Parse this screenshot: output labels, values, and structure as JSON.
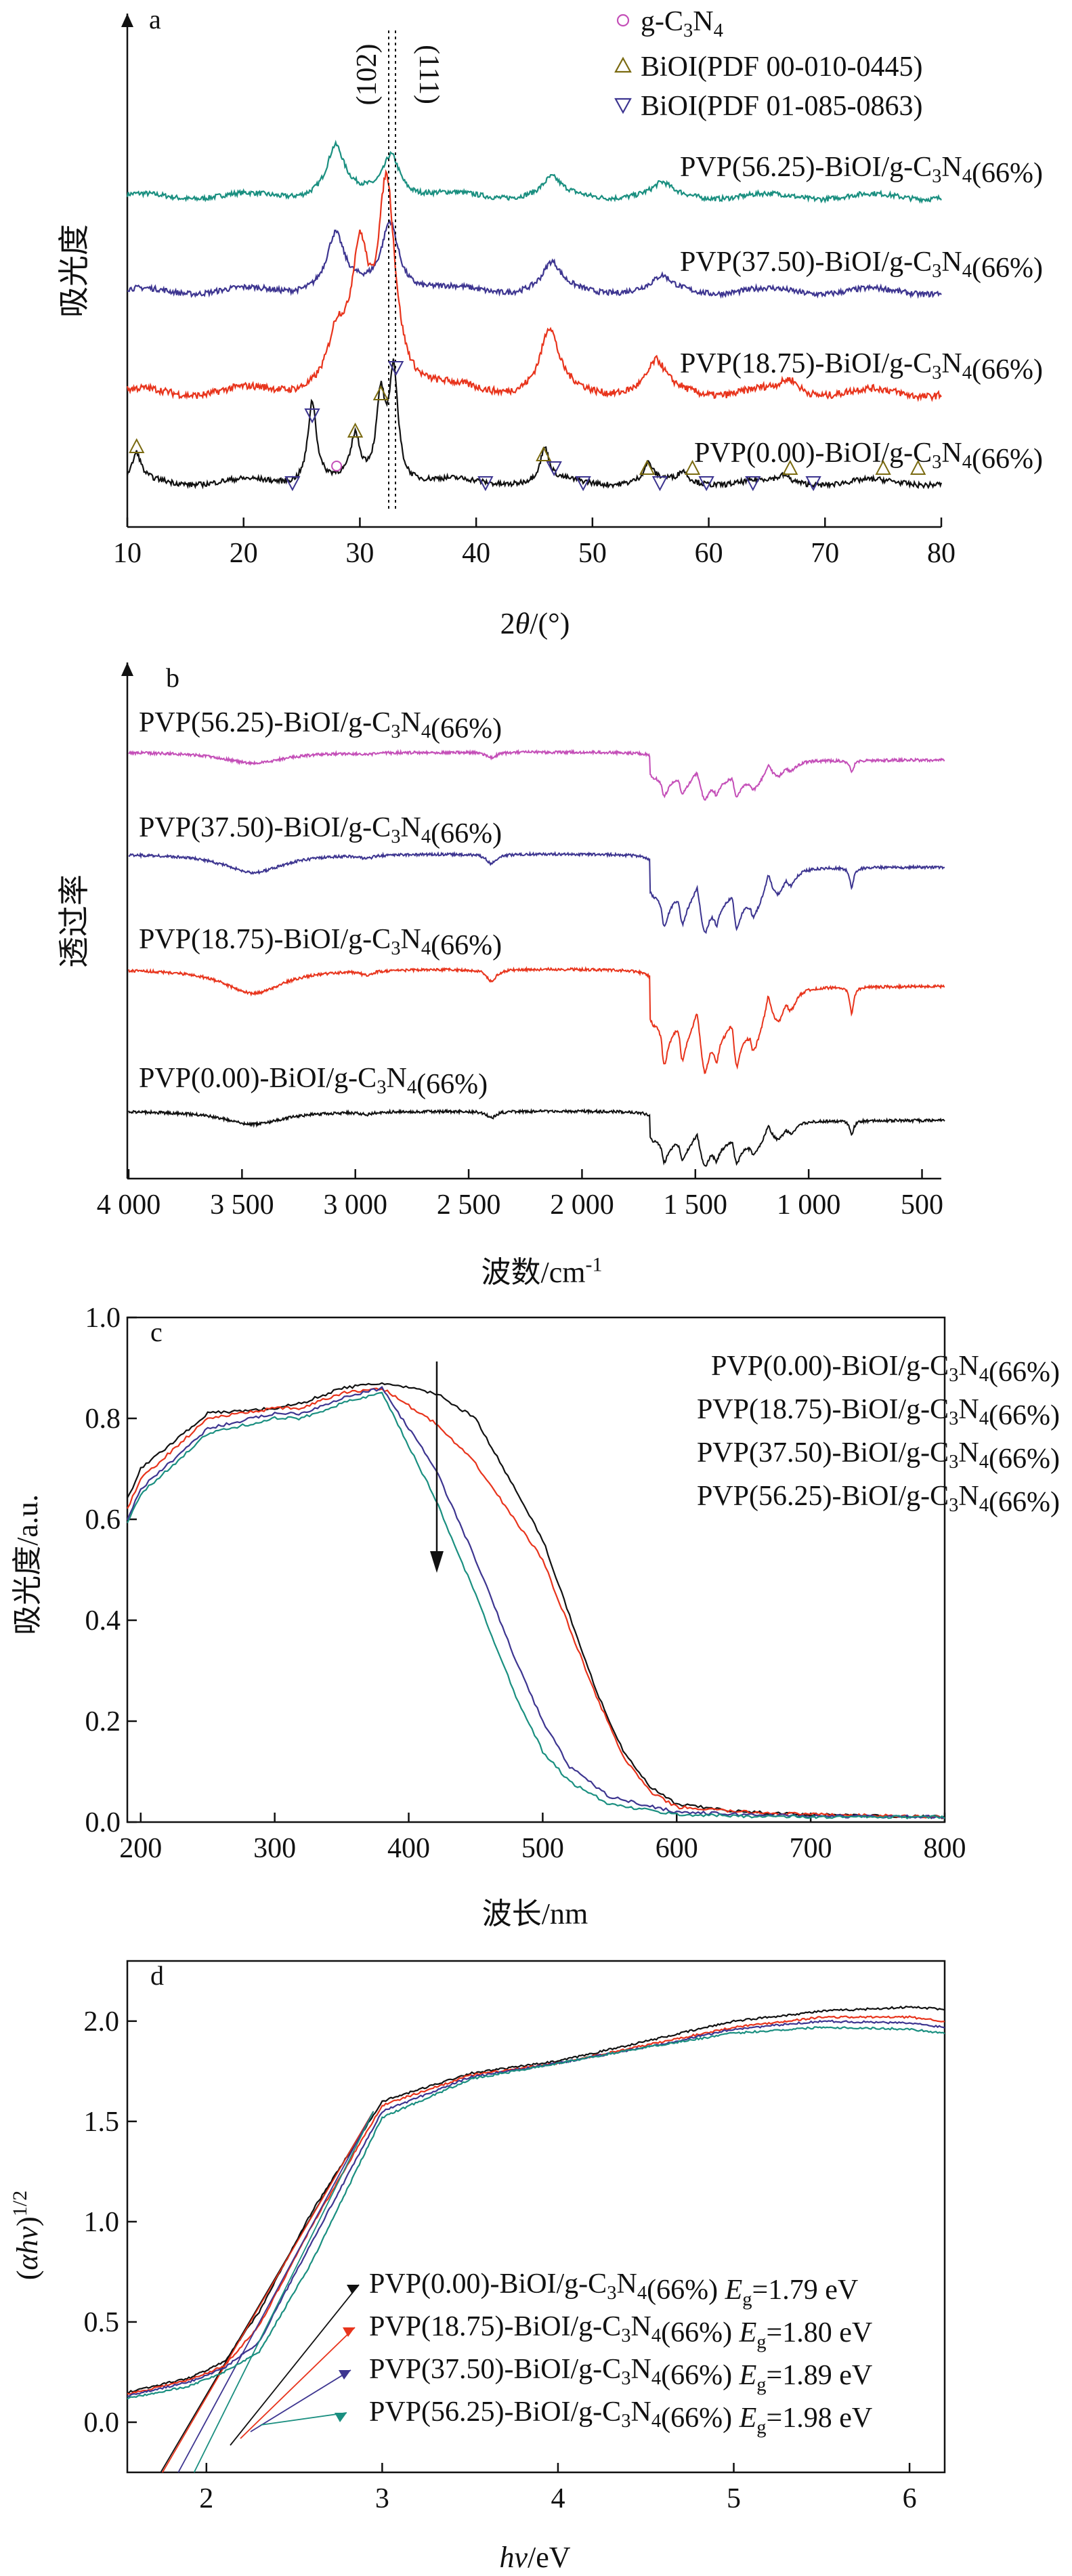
{
  "colors": {
    "axis": "#111111",
    "black": "#111111",
    "red": "#e8341c",
    "blue": "#3d3590",
    "teal": "#1a8f80",
    "magenta": "#c44fb8",
    "legend_marker_gcn": "#c44fb8",
    "legend_marker_bioi1": "#7a6a10",
    "legend_marker_bioi2": "#3d3590"
  },
  "chart_data": [
    {
      "panel": "a",
      "type": "line",
      "xlabel": "2θ/(°)",
      "ylabel": "吸光度",
      "xlim": [
        10,
        80
      ],
      "xticks": [
        10,
        20,
        30,
        40,
        50,
        60,
        70,
        80
      ],
      "legend": {
        "position": "top-right",
        "entries": [
          {
            "marker": "circle",
            "label": "g-C3N4"
          },
          {
            "marker": "triangle-up",
            "label": "BiOI(PDF 00-010-0445)"
          },
          {
            "marker": "triangle-down",
            "label": "BiOI(PDF 01-085-0863)"
          }
        ]
      },
      "annotations": [
        "(102)",
        "(111)"
      ],
      "series": [
        {
          "name": "PVP(56.25)-BiOI/g-C3N4(66%)",
          "color": "teal",
          "peaks": [
            [
              27.9,
              0.34
            ],
            [
              32.7,
              0.3
            ],
            [
              46.5,
              0.12
            ],
            [
              56.0,
              0.08
            ]
          ]
        },
        {
          "name": "PVP(37.50)-BiOI/g-C3N4(66%)",
          "color": "blue",
          "peaks": [
            [
              27.9,
              0.35
            ],
            [
              32.6,
              0.45
            ],
            [
              46.5,
              0.17
            ],
            [
              56.0,
              0.08
            ]
          ]
        },
        {
          "name": "PVP(18.75)-BiOI/g-C3N4(66%)",
          "color": "red",
          "peaks": [
            [
              28.0,
              0.22
            ],
            [
              30.0,
              0.6
            ],
            [
              32.3,
              1.0
            ],
            [
              46.3,
              0.3
            ],
            [
              55.5,
              0.14
            ],
            [
              67.0,
              0.06
            ]
          ]
        },
        {
          "name": "PVP(0.00)-BiOI/g-C3N4(66%)",
          "color": "black",
          "peaks": [
            [
              10.8,
              0.18
            ],
            [
              25.9,
              0.55
            ],
            [
              29.6,
              0.28
            ],
            [
              31.8,
              0.55
            ],
            [
              32.9,
              0.75
            ],
            [
              45.9,
              0.22
            ],
            [
              54.8,
              0.12
            ],
            [
              57.8,
              0.07
            ],
            [
              66.5,
              0.04
            ]
          ]
        }
      ],
      "marker_positions": {
        "circle": [
          28.0
        ],
        "triangle-up": [
          10.8,
          29.6,
          31.8,
          45.8,
          54.7,
          58.6,
          67.0,
          75.0,
          78.0
        ],
        "triangle-down": [
          24.2,
          25.9,
          33.1,
          40.8,
          46.7,
          49.2,
          55.8,
          59.8,
          63.8,
          69.0
        ]
      }
    },
    {
      "panel": "b",
      "type": "line",
      "xlabel": "波数/cm-1",
      "ylabel": "透过率",
      "xlim": [
        4000,
        400
      ],
      "xticks": [
        "4 000",
        "3 500",
        "3 000",
        "2 500",
        "2 000",
        "1 500",
        "1 000",
        "500"
      ],
      "series": [
        {
          "name": "PVP(56.25)-BiOI/g-C3N4(66%)",
          "color": "magenta"
        },
        {
          "name": "PVP(37.50)-BiOI/g-C3N4(66%)",
          "color": "blue"
        },
        {
          "name": "PVP(18.75)-BiOI/g-C3N4(66%)",
          "color": "red"
        },
        {
          "name": "PVP(0.00)-BiOI/g-C3N4(66%)",
          "color": "black"
        }
      ]
    },
    {
      "panel": "c",
      "type": "line",
      "xlabel": "波长/nm",
      "ylabel": "吸光度/a.u.",
      "xlim": [
        190,
        800
      ],
      "ylim": [
        0,
        1.0
      ],
      "xticks": [
        200,
        300,
        400,
        500,
        600,
        700,
        800
      ],
      "yticks": [
        "0.0",
        "0.2",
        "0.4",
        "0.6",
        "0.8",
        "1.0"
      ],
      "legend": {
        "position": "top-right"
      },
      "series": [
        {
          "name": "PVP(0.00)-BiOI/g-C3N4(66%)",
          "color": "black",
          "x": [
            190,
            200,
            250,
            300,
            320,
            350,
            380,
            420,
            450,
            500,
            540,
            560,
            580,
            600,
            650,
            700,
            800
          ],
          "y": [
            0.64,
            0.7,
            0.81,
            0.82,
            0.83,
            0.86,
            0.87,
            0.85,
            0.8,
            0.56,
            0.26,
            0.14,
            0.07,
            0.035,
            0.02,
            0.015,
            0.01
          ]
        },
        {
          "name": "PVP(18.75)-BiOI/g-C3N4(66%)",
          "color": "red",
          "x": [
            190,
            200,
            250,
            300,
            320,
            350,
            380,
            420,
            450,
            500,
            540,
            560,
            580,
            600,
            650,
            700,
            800
          ],
          "y": [
            0.62,
            0.68,
            0.8,
            0.82,
            0.82,
            0.85,
            0.86,
            0.79,
            0.71,
            0.52,
            0.25,
            0.13,
            0.06,
            0.03,
            0.02,
            0.015,
            0.01
          ]
        },
        {
          "name": "PVP(37.50)-BiOI/g-C3N4(66%)",
          "color": "blue",
          "x": [
            190,
            200,
            250,
            300,
            320,
            350,
            380,
            420,
            450,
            480,
            500,
            520,
            550,
            600,
            650,
            700,
            800
          ],
          "y": [
            0.6,
            0.66,
            0.78,
            0.81,
            0.81,
            0.84,
            0.86,
            0.7,
            0.52,
            0.32,
            0.2,
            0.11,
            0.05,
            0.02,
            0.015,
            0.012,
            0.01
          ]
        },
        {
          "name": "PVP(56.25)-BiOI/g-C3N4(66%)",
          "color": "teal",
          "x": [
            190,
            200,
            250,
            300,
            320,
            350,
            380,
            420,
            450,
            480,
            500,
            520,
            550,
            600,
            650,
            700,
            800
          ],
          "y": [
            0.59,
            0.65,
            0.77,
            0.8,
            0.8,
            0.83,
            0.85,
            0.64,
            0.45,
            0.25,
            0.14,
            0.08,
            0.035,
            0.015,
            0.012,
            0.01,
            0.01
          ]
        }
      ]
    },
    {
      "panel": "d",
      "type": "line",
      "xlabel": "hv/eV",
      "ylabel": "(αhv)1/2",
      "xlim": [
        1.55,
        6.2
      ],
      "ylim": [
        -0.25,
        2.3
      ],
      "xticks": [
        2,
        3,
        4,
        5,
        6
      ],
      "yticks": [
        "0.0",
        "0.5",
        "1.0",
        "1.5",
        "2.0"
      ],
      "legend": {
        "position": "bottom-right"
      },
      "series": [
        {
          "name": "PVP(0.00)-BiOI/g-C3N4(66%)",
          "color": "black",
          "Eg_label": "Eg=1.79 eV",
          "Eg": 1.79,
          "x": [
            1.55,
            1.9,
            2.1,
            2.3,
            2.6,
            3.0,
            3.5,
            4.0,
            4.5,
            5.0,
            5.5,
            6.0,
            6.2
          ],
          "y": [
            0.15,
            0.22,
            0.3,
            0.55,
            1.05,
            1.6,
            1.74,
            1.8,
            1.9,
            2.0,
            2.05,
            2.07,
            2.06
          ]
        },
        {
          "name": "PVP(18.75)-BiOI/g-C3N4(66%)",
          "color": "red",
          "Eg_label": "Eg=1.80 eV",
          "Eg": 1.8,
          "x": [
            1.55,
            1.9,
            2.1,
            2.3,
            2.6,
            3.0,
            3.5,
            4.0,
            4.5,
            5.0,
            5.5,
            6.0,
            6.2
          ],
          "y": [
            0.14,
            0.21,
            0.28,
            0.48,
            0.98,
            1.58,
            1.73,
            1.79,
            1.88,
            1.97,
            2.02,
            2.02,
            2.0
          ]
        },
        {
          "name": "PVP(37.50)-BiOI/g-C3N4(66%)",
          "color": "blue",
          "Eg_label": "Eg=1.89 eV",
          "Eg": 1.89,
          "x": [
            1.55,
            1.9,
            2.1,
            2.3,
            2.6,
            3.0,
            3.5,
            4.0,
            4.5,
            5.0,
            5.5,
            6.0,
            6.2
          ],
          "y": [
            0.13,
            0.2,
            0.27,
            0.4,
            0.9,
            1.55,
            1.72,
            1.79,
            1.87,
            1.96,
            2.0,
            1.99,
            1.97
          ]
        },
        {
          "name": "PVP(56.25)-BiOI/g-C3N4(66%)",
          "color": "teal",
          "Eg_label": "Eg=1.98 eV",
          "Eg": 1.98,
          "x": [
            1.55,
            1.9,
            2.1,
            2.3,
            2.6,
            3.0,
            3.5,
            4.0,
            4.5,
            5.0,
            5.5,
            6.0,
            6.2
          ],
          "y": [
            0.12,
            0.18,
            0.25,
            0.35,
            0.8,
            1.52,
            1.71,
            1.79,
            1.87,
            1.94,
            1.97,
            1.96,
            1.94
          ]
        }
      ]
    }
  ]
}
